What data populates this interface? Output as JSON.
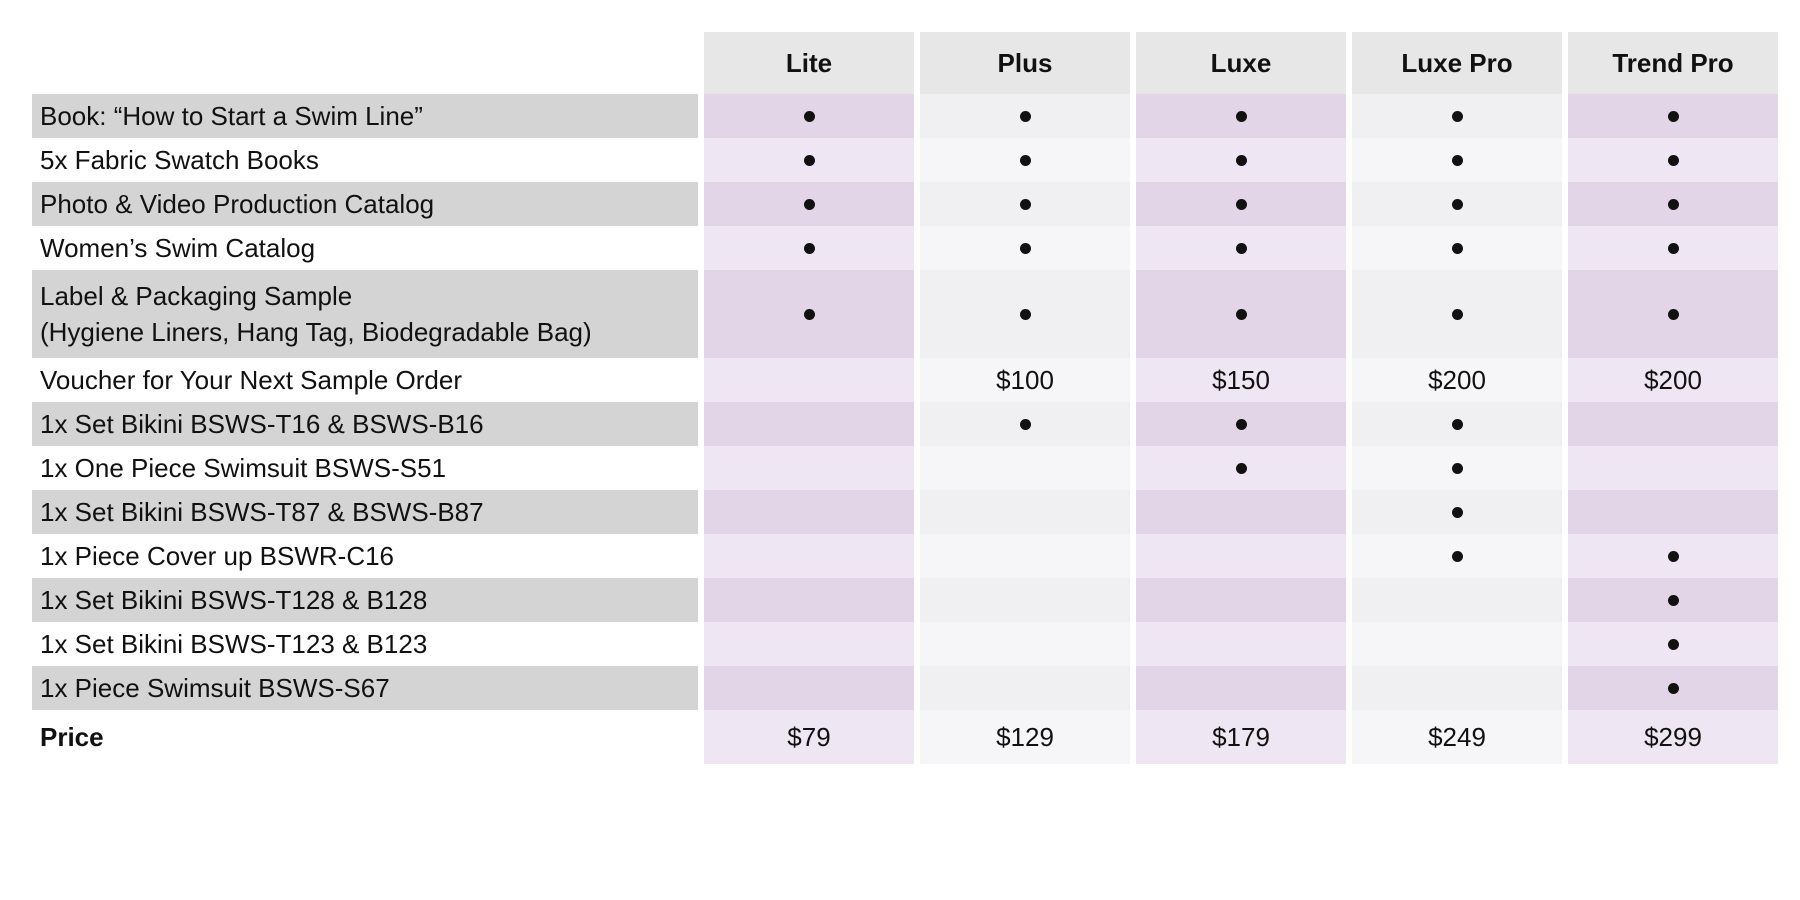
{
  "columns": [
    "Lite",
    "Plus",
    "Luxe",
    "Luxe Pro",
    "Trend Pro"
  ],
  "rows": [
    {
      "label": [
        "Book: “How to Start a Swim Line”"
      ],
      "cells": [
        "dot",
        "dot",
        "dot",
        "dot",
        "dot"
      ]
    },
    {
      "label": [
        "5x Fabric Swatch Books"
      ],
      "cells": [
        "dot",
        "dot",
        "dot",
        "dot",
        "dot"
      ]
    },
    {
      "label": [
        "Photo & Video Production Catalog"
      ],
      "cells": [
        "dot",
        "dot",
        "dot",
        "dot",
        "dot"
      ]
    },
    {
      "label": [
        "Women’s Swim Catalog"
      ],
      "cells": [
        "dot",
        "dot",
        "dot",
        "dot",
        "dot"
      ]
    },
    {
      "label": [
        "Label & Packaging Sample",
        "(Hygiene Liners, Hang Tag, Biodegradable Bag)"
      ],
      "cells": [
        "dot",
        "dot",
        "dot",
        "dot",
        "dot"
      ]
    },
    {
      "label": [
        "Voucher for Your Next Sample Order"
      ],
      "cells": [
        "",
        "$100",
        "$150",
        "$200",
        "$200"
      ]
    },
    {
      "label": [
        "1x Set Bikini BSWS-T16 & BSWS-B16"
      ],
      "cells": [
        "",
        "dot",
        "dot",
        "dot",
        ""
      ]
    },
    {
      "label": [
        "1x One Piece Swimsuit BSWS-S51"
      ],
      "cells": [
        "",
        "",
        "dot",
        "dot",
        ""
      ]
    },
    {
      "label": [
        "1x Set Bikini BSWS-T87 & BSWS-B87"
      ],
      "cells": [
        "",
        "",
        "",
        "dot",
        ""
      ]
    },
    {
      "label": [
        "1x Piece Cover up BSWR-C16"
      ],
      "cells": [
        "",
        "",
        "",
        "dot",
        "dot"
      ]
    },
    {
      "label": [
        "1x Set Bikini BSWS-T128 & B128"
      ],
      "cells": [
        "",
        "",
        "",
        "",
        "dot"
      ]
    },
    {
      "label": [
        "1x Set Bikini BSWS-T123 & B123"
      ],
      "cells": [
        "",
        "",
        "",
        "",
        "dot"
      ]
    },
    {
      "label": [
        "1x Piece Swimsuit BSWS-S67"
      ],
      "cells": [
        "",
        "",
        "",
        "",
        "dot"
      ]
    }
  ],
  "price": {
    "label": "Price",
    "values": [
      "$79",
      "$129",
      "$179",
      "$249",
      "$299"
    ]
  },
  "colors": {
    "header_bg": "#e7e7e7",
    "label_band": "#d4d4d4",
    "purple_dark": "#e3d5e8",
    "purple_light": "#efe6f3",
    "gray_dark": "#f0f0f2",
    "gray_light": "#f6f6f8"
  },
  "icons": {
    "included": "bullet-dot-icon"
  }
}
